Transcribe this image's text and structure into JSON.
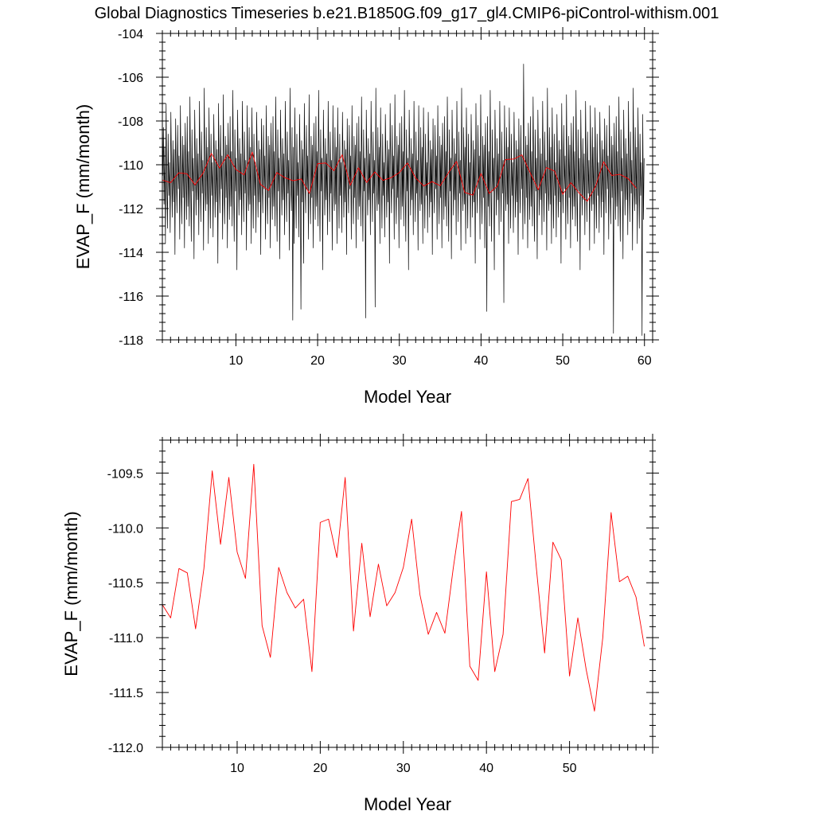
{
  "title": "Global Diagnostics Timeseries b.e21.B1850G.f09_g17_gl4.CMIP6-piControl-withism.001",
  "colors": {
    "monthly": "#000000",
    "annual": "#ff0000",
    "frame": "#000000"
  },
  "chart_data": [
    {
      "type": "line",
      "xlabel": "Model Year",
      "ylabel": "EVAP_F (mm/month)",
      "xlim": [
        1,
        61
      ],
      "ylim": [
        -118,
        -104
      ],
      "xticks": [
        10,
        20,
        30,
        40,
        50,
        60
      ],
      "yticks": [
        -118,
        -116,
        -114,
        -112,
        -110,
        -108,
        -106,
        -104
      ],
      "ytick_labels": [
        "-118",
        "-116",
        "-114",
        "-112",
        "-110",
        "-108",
        "-106",
        "-104"
      ],
      "grid": false,
      "series": [
        {
          "color": "#000000",
          "x_start": 1.0417,
          "x_step": 0.08333,
          "values": [
            -110.5,
            -108.3,
            -111.8,
            -109.2,
            -113.6,
            -107.2,
            -110.8,
            -112.9,
            -108.6,
            -111.4,
            -109.9,
            -113.1,
            -107.6,
            -110.2,
            -112.4,
            -108.9,
            -111.7,
            -109.3,
            -114.1,
            -107.9,
            -110.6,
            -112.2,
            -108.2,
            -111.1,
            -109.6,
            -113.4,
            -107.3,
            -110.9,
            -112.7,
            -108.7,
            -111.5,
            -109.1,
            -113.8,
            -108.1,
            -110.4,
            -112.5,
            -107.8,
            -111.9,
            -109.4,
            -112.8,
            -106.9,
            -110.7,
            -113.5,
            -108.4,
            -111.2,
            -109.7,
            -114.3,
            -107.5,
            -110.1,
            -112.3,
            -108.8,
            -111.6,
            -109.5,
            -113.2,
            -107.1,
            -110.3,
            -112.6,
            -108.5,
            -111.3,
            -109.8,
            -113.9,
            -106.5,
            -110.9,
            -112.1,
            -108.3,
            -111.8,
            -109.2,
            -113.6,
            -107.4,
            -110.5,
            -112.9,
            -108.6,
            -111.4,
            -109.9,
            -113.3,
            -107.7,
            -110.2,
            -112.4,
            -108.9,
            -111.7,
            -109.3,
            -114.5,
            -107.2,
            -110.6,
            -112.2,
            -108.2,
            -111.1,
            -109.6,
            -113.4,
            -106.8,
            -110.9,
            -112.7,
            -108.7,
            -111.5,
            -109.1,
            -113.8,
            -108.1,
            -110.4,
            -112.5,
            -107.8,
            -111.9,
            -109.4,
            -112.8,
            -106.6,
            -110.7,
            -113.5,
            -108.4,
            -111.2,
            -109.7,
            -114.8,
            -107.5,
            -110.1,
            -112.3,
            -108.8,
            -111.6,
            -109.5,
            -113.2,
            -107.1,
            -110.3,
            -112.6,
            -108.5,
            -111.3,
            -109.8,
            -113.9,
            -107.3,
            -110.9,
            -112.1,
            -108.3,
            -111.8,
            -109.2,
            -113.6,
            -107.4,
            -110.5,
            -112.9,
            -108.6,
            -111.4,
            -109.9,
            -113.1,
            -107.6,
            -110.2,
            -112.4,
            -108.9,
            -111.7,
            -109.3,
            -114.1,
            -107.9,
            -110.6,
            -112.2,
            -108.2,
            -111.1,
            -109.6,
            -113.4,
            -107.3,
            -110.9,
            -112.7,
            -108.7,
            -111.5,
            -109.1,
            -113.8,
            -108.1,
            -110.4,
            -112.5,
            -107.8,
            -111.9,
            -109.4,
            -112.8,
            -106.9,
            -110.7,
            -113.5,
            -108.4,
            -111.2,
            -109.7,
            -114.3,
            -107.5,
            -110.1,
            -112.3,
            -108.8,
            -111.6,
            -109.5,
            -113.2,
            -107.1,
            -110.3,
            -112.6,
            -108.5,
            -111.3,
            -109.8,
            -113.9,
            -106.5,
            -110.9,
            -112.1,
            -108.3,
            -117.1,
            -109.2,
            -113.6,
            -107.4,
            -110.5,
            -112.9,
            -108.6,
            -111.4,
            -109.9,
            -113.3,
            -107.7,
            -110.2,
            -116.6,
            -108.9,
            -111.7,
            -109.3,
            -114.5,
            -107.2,
            -110.6,
            -112.2,
            -108.2,
            -111.1,
            -109.6,
            -113.4,
            -106.8,
            -110.9,
            -112.7,
            -108.7,
            -111.5,
            -109.1,
            -113.8,
            -108.1,
            -110.4,
            -112.5,
            -107.8,
            -111.9,
            -109.4,
            -112.8,
            -106.6,
            -110.7,
            -113.5,
            -108.4,
            -111.2,
            -109.7,
            -114.8,
            -107.5,
            -110.1,
            -112.3,
            -108.8,
            -111.6,
            -109.5,
            -113.2,
            -107.1,
            -110.3,
            -112.6,
            -108.5,
            -111.3,
            -109.8,
            -113.9,
            -107.3,
            -110.9,
            -112.1,
            -108.3,
            -111.8,
            -109.2,
            -113.6,
            -107.4,
            -110.5,
            -112.9,
            -108.6,
            -111.4,
            -109.9,
            -113.1,
            -107.6,
            -110.2,
            -112.4,
            -108.9,
            -111.7,
            -109.3,
            -114.1,
            -107.9,
            -110.6,
            -112.2,
            -108.2,
            -111.1,
            -109.6,
            -113.4,
            -107.3,
            -110.9,
            -112.7,
            -108.7,
            -111.5,
            -109.1,
            -113.8,
            -108.1,
            -110.4,
            -112.5,
            -107.8,
            -111.9,
            -109.4,
            -112.8,
            -106.9,
            -110.7,
            -113.5,
            -108.4,
            -111.2,
            -109.7,
            -117.0,
            -107.5,
            -110.1,
            -112.3,
            -108.8,
            -111.6,
            -109.5,
            -113.2,
            -107.1,
            -110.3,
            -112.6,
            -108.5,
            -111.3,
            -109.8,
            -116.5,
            -106.5,
            -110.9,
            -112.1,
            -108.3,
            -111.8,
            -109.2,
            -113.6,
            -107.4,
            -110.5,
            -112.9,
            -108.6,
            -111.4,
            -109.9,
            -113.3,
            -107.7,
            -110.2,
            -112.4,
            -108.9,
            -111.7,
            -109.3,
            -114.5,
            -107.2,
            -110.6,
            -112.2,
            -108.2,
            -111.1,
            -109.6,
            -113.4,
            -106.8,
            -110.9,
            -112.7,
            -108.7,
            -111.5,
            -109.1,
            -113.8,
            -108.1,
            -110.4,
            -112.5,
            -107.8,
            -111.9,
            -109.4,
            -112.8,
            -106.6,
            -110.7,
            -113.5,
            -108.4,
            -111.2,
            -109.7,
            -114.8,
            -107.5,
            -110.1,
            -112.3,
            -108.8,
            -111.6,
            -109.5,
            -113.2,
            -107.1,
            -110.3,
            -112.6,
            -108.5,
            -111.3,
            -109.8,
            -113.9,
            -107.3,
            -110.9,
            -112.1,
            -108.3,
            -111.8,
            -109.2,
            -113.6,
            -107.4,
            -110.5,
            -112.9,
            -108.6,
            -111.4,
            -109.9,
            -113.1,
            -107.6,
            -110.2,
            -112.4,
            -108.9,
            -111.7,
            -109.3,
            -114.1,
            -107.9,
            -110.6,
            -112.2,
            -108.2,
            -111.1,
            -109.6,
            -113.4,
            -107.3,
            -110.9,
            -112.7,
            -108.7,
            -111.5,
            -109.1,
            -113.8,
            -108.1,
            -110.4,
            -112.5,
            -107.8,
            -111.9,
            -109.4,
            -112.8,
            -106.9,
            -110.7,
            -113.5,
            -108.4,
            -111.2,
            -109.7,
            -114.3,
            -107.5,
            -110.1,
            -112.3,
            -108.8,
            -111.6,
            -109.5,
            -113.2,
            -107.1,
            -110.3,
            -112.6,
            -108.5,
            -111.3,
            -109.8,
            -113.9,
            -106.5,
            -110.9,
            -112.1,
            -108.3,
            -111.8,
            -109.2,
            -113.6,
            -107.4,
            -110.5,
            -112.9,
            -108.6,
            -111.4,
            -109.9,
            -113.3,
            -107.7,
            -110.2,
            -112.4,
            -108.9,
            -111.7,
            -109.3,
            -114.5,
            -107.2,
            -110.6,
            -112.2,
            -108.2,
            -111.1,
            -109.6,
            -113.4,
            -106.8,
            -110.9,
            -112.7,
            -108.7,
            -111.5,
            -109.1,
            -113.8,
            -108.1,
            -110.4,
            -116.7,
            -107.8,
            -111.9,
            -109.4,
            -112.8,
            -106.6,
            -110.7,
            -113.5,
            -108.4,
            -111.2,
            -109.7,
            -114.8,
            -107.5,
            -110.1,
            -112.3,
            -108.8,
            -111.6,
            -109.5,
            -113.2,
            -107.1,
            -110.3,
            -112.6,
            -108.5,
            -111.3,
            -109.8,
            -116.3,
            -107.3,
            -110.9,
            -112.1,
            -108.3,
            -111.8,
            -109.2,
            -113.6,
            -107.4,
            -110.5,
            -112.9,
            -108.6,
            -111.4,
            -109.9,
            -113.1,
            -107.6,
            -110.2,
            -112.4,
            -108.9,
            -111.7,
            -109.3,
            -114.1,
            -107.9,
            -110.6,
            -112.2,
            -108.2,
            -111.1,
            -109.6,
            -113.4,
            -105.4,
            -110.9,
            -112.7,
            -108.7,
            -111.5,
            -109.1,
            -113.8,
            -108.1,
            -110.4,
            -112.5,
            -107.8,
            -111.9,
            -109.4,
            -112.8,
            -106.9,
            -110.7,
            -113.5,
            -108.4,
            -111.2,
            -109.7,
            -114.3,
            -107.5,
            -110.1,
            -112.3,
            -108.8,
            -111.6,
            -109.5,
            -113.2,
            -107.1,
            -110.3,
            -112.6,
            -108.5,
            -111.3,
            -109.8,
            -113.9,
            -106.5,
            -110.9,
            -112.1,
            -108.3,
            -111.8,
            -109.2,
            -113.6,
            -107.4,
            -110.5,
            -112.9,
            -108.6,
            -111.4,
            -109.9,
            -113.3,
            -107.7,
            -110.2,
            -112.4,
            -108.9,
            -111.7,
            -109.3,
            -114.5,
            -107.2,
            -110.6,
            -112.2,
            -108.2,
            -111.1,
            -109.6,
            -113.4,
            -106.8,
            -110.9,
            -112.7,
            -108.7,
            -111.5,
            -109.1,
            -113.8,
            -108.1,
            -110.4,
            -112.5,
            -107.8,
            -111.9,
            -109.4,
            -112.8,
            -106.6,
            -110.7,
            -113.5,
            -108.4,
            -111.2,
            -109.7,
            -114.8,
            -107.5,
            -110.1,
            -112.3,
            -108.8,
            -111.6,
            -109.5,
            -113.2,
            -107.1,
            -110.3,
            -112.6,
            -108.5,
            -111.3,
            -109.8,
            -113.9,
            -107.3,
            -110.9,
            -112.1,
            -108.3,
            -111.8,
            -109.2,
            -113.6,
            -107.4,
            -110.5,
            -112.9,
            -108.6,
            -111.4,
            -109.9,
            -113.1,
            -107.6,
            -110.2,
            -112.4,
            -108.9,
            -111.7,
            -109.3,
            -114.1,
            -107.9,
            -110.6,
            -112.2,
            -108.2,
            -111.1,
            -109.6,
            -113.4,
            -107.3,
            -110.9,
            -112.7,
            -108.7,
            -111.5,
            -109.1,
            -117.7,
            -108.1,
            -110.4,
            -112.5,
            -107.8,
            -111.9,
            -109.4,
            -112.8,
            -106.9,
            -110.7,
            -113.5,
            -108.4,
            -111.2,
            -109.7,
            -114.3,
            -107.5,
            -110.1,
            -112.3,
            -108.8,
            -111.6,
            -109.5,
            -113.2,
            -107.1,
            -110.3,
            -112.6,
            -108.5,
            -111.3,
            -109.8,
            -113.9,
            -106.5,
            -110.9,
            -112.1,
            -108.3,
            -111.8,
            -109.2,
            -113.6,
            -107.4,
            -110.5,
            -112.9,
            -108.6,
            -111.4,
            -109.9,
            -117.8,
            -107.7,
            -112.5,
            -109.7
          ]
        },
        {
          "color": "#ff0000",
          "x_start": 1.0,
          "x_step": 1.0,
          "values": [
            -110.7,
            -110.82,
            -110.37,
            -110.41,
            -110.92,
            -110.37,
            -109.48,
            -110.15,
            -109.54,
            -110.22,
            -110.46,
            -109.42,
            -110.89,
            -111.18,
            -110.36,
            -110.59,
            -110.73,
            -110.65,
            -111.31,
            -109.95,
            -109.92,
            -110.27,
            -109.54,
            -110.94,
            -110.14,
            -110.81,
            -110.33,
            -110.71,
            -110.59,
            -110.36,
            -109.92,
            -110.61,
            -110.97,
            -110.77,
            -110.96,
            -110.37,
            -109.85,
            -111.26,
            -111.39,
            -110.4,
            -111.31,
            -110.97,
            -109.76,
            -109.74,
            -109.55,
            -110.36,
            -111.14,
            -110.13,
            -110.29,
            -111.35,
            -110.82,
            -111.29,
            -111.67,
            -111.0,
            -109.86,
            -110.49,
            -110.44,
            -110.63,
            -111.08
          ]
        }
      ]
    },
    {
      "type": "line",
      "xlabel": "Model Year",
      "ylabel": "EVAP_F (mm/month)",
      "xlim": [
        1,
        60
      ],
      "ylim": [
        -112,
        -109.2
      ],
      "xticks": [
        10,
        20,
        30,
        40,
        50
      ],
      "yticks": [
        -112,
        -111.5,
        -111,
        -110.5,
        -110,
        -109.5
      ],
      "ytick_labels": [
        "-112.0",
        "-111.5",
        "-111.0",
        "-110.5",
        "-110.0",
        "-109.5"
      ],
      "grid": false,
      "series": [
        {
          "color": "#ff0000",
          "x_start": 1.0,
          "x_step": 1.0,
          "values": [
            -110.7,
            -110.82,
            -110.37,
            -110.41,
            -110.92,
            -110.37,
            -109.48,
            -110.15,
            -109.54,
            -110.22,
            -110.46,
            -109.42,
            -110.89,
            -111.18,
            -110.36,
            -110.59,
            -110.73,
            -110.65,
            -111.31,
            -109.95,
            -109.92,
            -110.27,
            -109.54,
            -110.94,
            -110.14,
            -110.81,
            -110.33,
            -110.71,
            -110.59,
            -110.36,
            -109.92,
            -110.61,
            -110.97,
            -110.77,
            -110.96,
            -110.37,
            -109.85,
            -111.26,
            -111.39,
            -110.4,
            -111.31,
            -110.97,
            -109.76,
            -109.74,
            -109.55,
            -110.36,
            -111.14,
            -110.13,
            -110.29,
            -111.35,
            -110.82,
            -111.29,
            -111.67,
            -111.0,
            -109.86,
            -110.49,
            -110.44,
            -110.63,
            -111.08
          ]
        }
      ]
    }
  ]
}
